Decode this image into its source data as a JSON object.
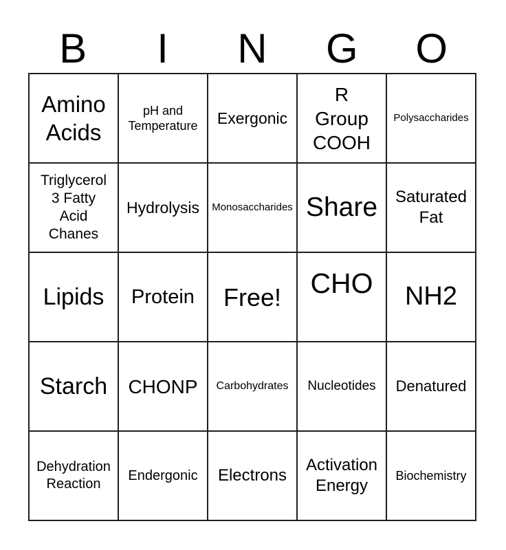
{
  "card": {
    "title": "BINGO",
    "colors": {
      "background": "#ffffff",
      "border": "#1f1f1f",
      "text": "#000000"
    }
  },
  "header": {
    "letters": [
      "B",
      "I",
      "N",
      "G",
      "O"
    ]
  },
  "grid": {
    "rows": 5,
    "cols": 5,
    "free_cell_text": "Free!",
    "cells": [
      "Amino\nAcids",
      "pH and\nTemperature",
      "Exergonic",
      "R\nGroup\nCOOH",
      "Polysaccharides",
      "Triglycerol\n3 Fatty\nAcid\nChanes",
      "Hydrolysis",
      "Monosaccharides",
      "Share",
      "Saturated\nFat",
      "Lipids",
      "Protein",
      "Free!",
      "CHO",
      "NH2",
      "Starch",
      "CHONP",
      "Carbohydrates",
      "Nucleotides",
      "Denatured",
      "Dehydration\nReaction",
      "Endergonic",
      "Electrons",
      "Activation\nEnergy",
      "Biochemistry"
    ]
  }
}
